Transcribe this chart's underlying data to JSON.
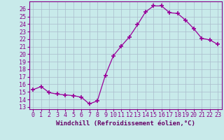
{
  "hours": [
    0,
    1,
    2,
    3,
    4,
    5,
    6,
    7,
    8,
    9,
    10,
    11,
    12,
    13,
    14,
    15,
    16,
    17,
    18,
    19,
    20,
    21,
    22,
    23
  ],
  "values": [
    15.3,
    15.7,
    14.9,
    14.7,
    14.6,
    14.5,
    14.3,
    13.4,
    13.8,
    17.2,
    19.8,
    21.1,
    22.3,
    23.9,
    25.6,
    26.4,
    26.4,
    25.5,
    25.4,
    24.5,
    23.4,
    22.1,
    21.9,
    21.3
  ],
  "line_color": "#990099",
  "marker": "+",
  "marker_size": 4,
  "marker_lw": 1.2,
  "bg_color": "#c8eaea",
  "grid_color": "#aabbcc",
  "xlabel": "Windchill (Refroidissement éolien,°C)",
  "xlabel_color": "#660066",
  "ylabel_ticks": [
    13,
    14,
    15,
    16,
    17,
    18,
    19,
    20,
    21,
    22,
    23,
    24,
    25,
    26
  ],
  "ylim": [
    12.7,
    27.0
  ],
  "xlim": [
    -0.5,
    23.5
  ],
  "tick_color": "#880088",
  "spine_color": "#880088",
  "tick_fontsize": 6,
  "xlabel_fontsize": 6.5
}
